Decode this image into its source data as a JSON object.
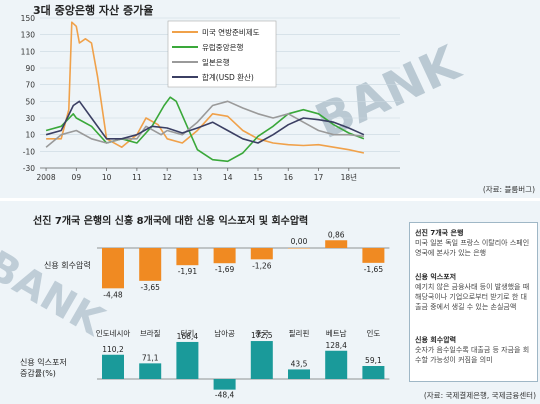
{
  "top_chart": {
    "title": "3대 중앙은행 자산 증가율",
    "source": "(자료: 블룸버그)",
    "background_word": "BANK",
    "colors": {
      "fed": "#f0a14a",
      "ecb": "#3aa83a",
      "boj": "#9a9a9a",
      "total": "#3b3f63"
    }
  },
  "bottom_panel": {
    "title": "선진 7개국 은행의 신흥 8개국에 대한 신용 익스포저 및 회수압력",
    "source": "(자료: 국제결제은행, 국제금융센터)",
    "background_word": "BANK",
    "notes": [
      {
        "title": "선진 7개국 은행",
        "body": "미국 일본 독일 프랑스 이탈리아 스페인 영국에 본사가 있는 은행"
      },
      {
        "title": "신용 익스포저",
        "body": "예기치 않은 금융사태 등이 발생했을 때 해당국이나 기업으로부터 받기로 한 대출금 중에서 생길 수 있는 손실금액"
      },
      {
        "title": "신용 회수압력",
        "body": "숫자가 음수일수록 대출금 등 자금을 회수할 가능성이 커짐을 의미"
      }
    ]
  },
  "chart_data": [
    {
      "type": "line",
      "title": "3대 중앙은행 자산 증가율",
      "x_ticks": [
        "2008",
        "09",
        "10",
        "11",
        "12",
        "13",
        "14",
        "15",
        "16",
        "17",
        "18년"
      ],
      "ylim": [
        -30,
        150
      ],
      "y_ticks": [
        "150",
        "130",
        "110",
        "90",
        "70",
        "50",
        "30",
        "10",
        "-10",
        "-30"
      ],
      "grid": true,
      "legend": "top-left",
      "series": [
        {
          "name": "미국 연방준비제도",
          "x": [
            2008.0,
            2008.5,
            2008.75,
            2008.85,
            2009.0,
            2009.1,
            2009.3,
            2009.5,
            2009.7,
            2010.0,
            2010.5,
            2011.0,
            2011.3,
            2011.7,
            2012.0,
            2012.5,
            2013.0,
            2013.5,
            2014.0,
            2014.5,
            2015.0,
            2015.5,
            2016.0,
            2016.5,
            2017.0,
            2017.5,
            2018.0,
            2018.5
          ],
          "y": [
            5,
            5,
            40,
            145,
            140,
            120,
            125,
            120,
            80,
            5,
            -5,
            10,
            30,
            22,
            5,
            0,
            15,
            35,
            32,
            15,
            5,
            0,
            -2,
            -3,
            -2,
            -5,
            -8,
            -12
          ]
        },
        {
          "name": "유럽중앙은행",
          "x": [
            2008.0,
            2008.5,
            2008.9,
            2009.0,
            2009.5,
            2010.0,
            2010.5,
            2011.0,
            2011.5,
            2011.9,
            2012.1,
            2012.3,
            2012.6,
            2013.0,
            2013.5,
            2014.0,
            2014.5,
            2015.0,
            2015.5,
            2016.0,
            2016.5,
            2017.0,
            2017.5,
            2018.0,
            2018.5
          ],
          "y": [
            15,
            20,
            35,
            30,
            20,
            0,
            5,
            0,
            20,
            45,
            55,
            50,
            25,
            -8,
            -20,
            -22,
            -12,
            8,
            20,
            35,
            40,
            35,
            22,
            12,
            5
          ]
        },
        {
          "name": "일본은행",
          "x": [
            2008.0,
            2008.5,
            2009.0,
            2009.5,
            2010.0,
            2010.5,
            2011.0,
            2011.3,
            2011.8,
            2012.0,
            2012.5,
            2013.0,
            2013.5,
            2014.0,
            2014.5,
            2015.0,
            2015.5,
            2016.0,
            2016.5,
            2017.0,
            2017.5,
            2018.0,
            2018.5
          ],
          "y": [
            -5,
            10,
            15,
            5,
            0,
            5,
            5,
            20,
            10,
            15,
            10,
            25,
            45,
            50,
            42,
            35,
            30,
            35,
            25,
            15,
            10,
            10,
            8
          ]
        },
        {
          "name": "합계(USD 환산)",
          "x": [
            2008.0,
            2008.5,
            2008.9,
            2009.1,
            2009.5,
            2010.0,
            2010.5,
            2011.0,
            2011.5,
            2012.0,
            2012.5,
            2013.0,
            2013.5,
            2014.0,
            2014.5,
            2015.0,
            2015.5,
            2016.0,
            2016.5,
            2017.0,
            2017.5,
            2018.0,
            2018.5
          ],
          "y": [
            10,
            15,
            45,
            50,
            30,
            5,
            5,
            10,
            20,
            18,
            12,
            18,
            25,
            15,
            5,
            0,
            10,
            22,
            30,
            28,
            25,
            18,
            10
          ]
        }
      ]
    },
    {
      "type": "bar",
      "ylabel": "신용 회수압력",
      "categories": [
        "인도네시아",
        "브라질",
        "터키",
        "남아공",
        "중국",
        "필리핀",
        "베트남",
        "인도"
      ],
      "values": [
        -4.48,
        -3.65,
        -1.91,
        -1.69,
        -1.26,
        0.0,
        0.86,
        -1.65
      ],
      "value_labels": [
        "-4,48",
        "-3,65",
        "-1,91",
        "-1,69",
        "-1,26",
        "0,00",
        "0,86",
        "-1,65"
      ],
      "color": "#f08a22"
    },
    {
      "type": "bar",
      "ylabel": "신용 익스포저 증감률(%)",
      "categories": [
        "인도네시아",
        "브라질",
        "터키",
        "남아공",
        "중국",
        "필리핀",
        "베트남",
        "인도"
      ],
      "values": [
        110.2,
        71.1,
        168.4,
        -48.4,
        172.5,
        43.5,
        128.4,
        59.1
      ],
      "value_labels": [
        "110,2",
        "71,1",
        "168,4",
        "-48,4",
        "172,5",
        "43,5",
        "128,4",
        "59,1"
      ],
      "color": "#1a9a9a"
    }
  ]
}
